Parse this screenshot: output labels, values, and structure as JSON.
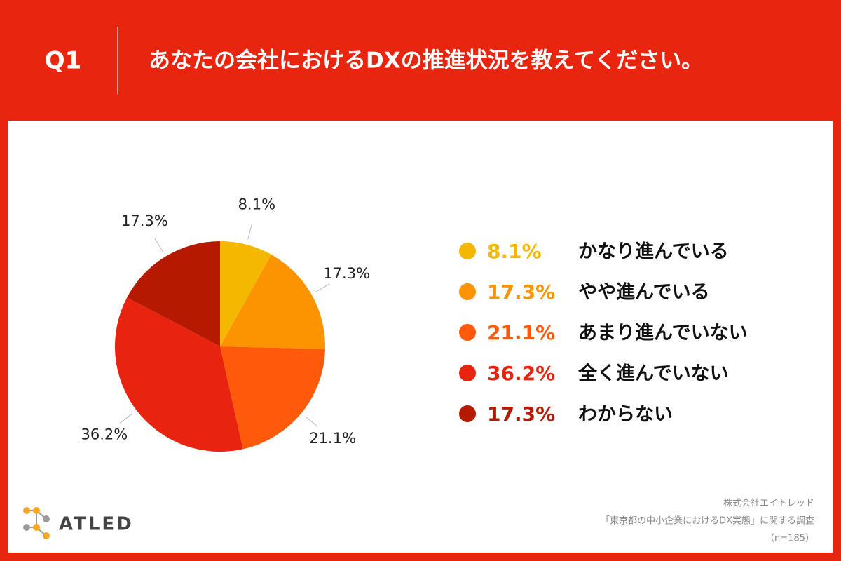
{
  "header": {
    "number": "Q1",
    "question": "あなたの会社におけるDXの推進状況を教えてください。"
  },
  "chart_data": {
    "type": "pie",
    "categories": [
      "かなり進んでいる",
      "やや進んでいる",
      "あまり進んでいない",
      "全く進んでいない",
      "わからない"
    ],
    "values": [
      8.1,
      17.3,
      21.1,
      36.2,
      17.3
    ],
    "value_labels": [
      "8.1%",
      "17.3%",
      "21.1%",
      "36.2%",
      "17.3%"
    ],
    "colors": [
      "#f5b800",
      "#fb9400",
      "#ff5a0a",
      "#e8230f",
      "#b51a00"
    ]
  },
  "logo": "ATLED",
  "source": {
    "company": "株式会社エイトレッド",
    "survey": "「東京都の中小企業におけるDX実態」に関する調査",
    "sample": "（n=185）"
  }
}
